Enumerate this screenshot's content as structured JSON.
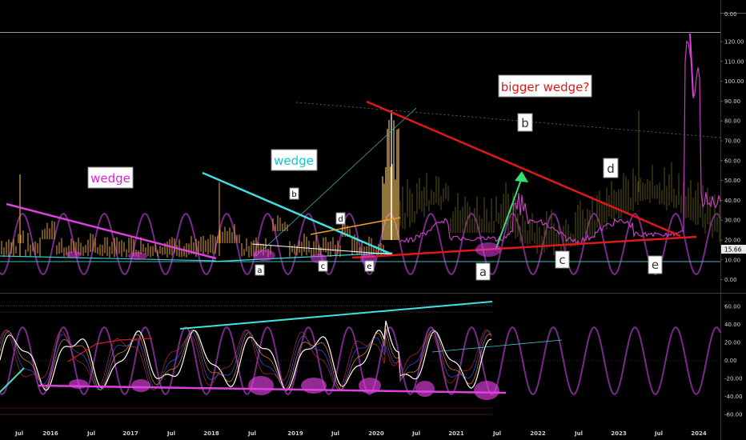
{
  "chart_data": [
    {
      "type": "line",
      "panel": "price",
      "y_ticks": [
        "120.00",
        "110.00",
        "100.00",
        "90.00",
        "80.00",
        "70.00",
        "60.00",
        "50.00",
        "40.00",
        "30.00",
        "20.00",
        "10.00",
        "0.00"
      ],
      "top_tick": "0.00",
      "current_value": "15.66",
      "x_tick_labels": [
        "Jul",
        "2016",
        "Jul",
        "2017",
        "Jul",
        "2018",
        "Jul",
        "2019",
        "Jul",
        "2020",
        "Jul",
        "2021",
        "Jul",
        "2022",
        "Jul",
        "2023",
        "Jul",
        "2024"
      ],
      "annotations": {
        "wedge_left": "wedge",
        "wedge_mid": "wedge",
        "bigger_wedge": "bigger wedge?",
        "b1": "b",
        "a1": "a",
        "c1": "c",
        "d1": "d",
        "e1": "e",
        "a2": "a",
        "b2": "b",
        "c2": "c",
        "d2": "d",
        "e2": "e"
      },
      "colors": {
        "candles": "#e8a33a",
        "pink": "#e040e0",
        "cyan": "#40e0e0",
        "red": "#e02020",
        "green": "#30e070",
        "orange": "#f0a020",
        "support_line": "#40c0c8",
        "sine": "#8a2a9a"
      }
    },
    {
      "type": "line",
      "panel": "oscillator",
      "y_ticks": [
        "60.00",
        "40.00",
        "20.00",
        "0.00",
        "-20.00",
        "-40.00",
        "-60.00"
      ]
    }
  ]
}
